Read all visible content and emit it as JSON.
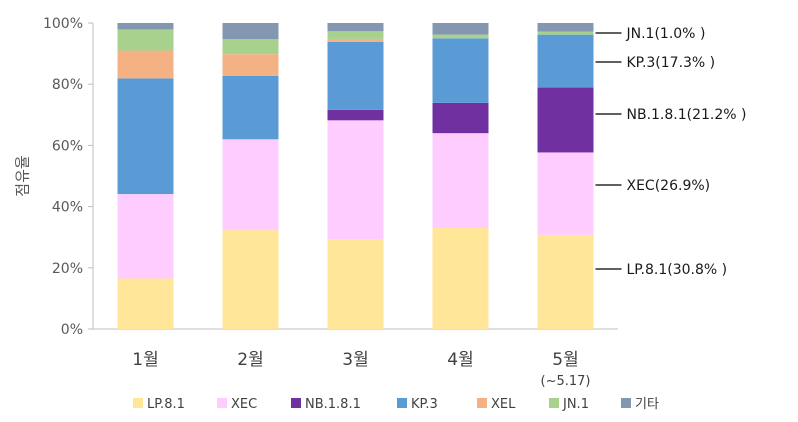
{
  "chart_data": {
    "type": "bar",
    "stacked": true,
    "percent": true,
    "ylabel": "점유율",
    "ylim": [
      0,
      100
    ],
    "yticks": [
      "0%",
      "20%",
      "40%",
      "60%",
      "80%",
      "100%"
    ],
    "categories": [
      "1월",
      "2월",
      "3월",
      "4월",
      "5월"
    ],
    "category_sublabels": [
      "",
      "",
      "",
      "",
      "(~5.17)"
    ],
    "legend_position": "bottom",
    "grid": false,
    "series": [
      {
        "name": "LP.8.1",
        "color": "#FFE699",
        "values": [
          16.5,
          32.3,
          29.3,
          33.0,
          30.8
        ]
      },
      {
        "name": "XEC",
        "color": "#FFCCFF",
        "values": [
          27.6,
          29.7,
          38.9,
          31.0,
          26.9
        ]
      },
      {
        "name": "NB.1.8.1",
        "color": "#7030A0",
        "values": [
          0,
          0,
          3.4,
          9.9,
          21.2
        ]
      },
      {
        "name": "KP.3",
        "color": "#5B9BD5",
        "values": [
          37.8,
          20.7,
          22.2,
          21.1,
          17.3
        ]
      },
      {
        "name": "XEL",
        "color": "#F4B183",
        "values": [
          9.1,
          7.1,
          1.0,
          0,
          0
        ]
      },
      {
        "name": "JN.1",
        "color": "#A9D18E",
        "values": [
          6.9,
          4.9,
          2.5,
          1.2,
          1.0
        ]
      },
      {
        "name": "기타",
        "color": "#8497B0",
        "values": [
          2.1,
          5.3,
          2.7,
          3.8,
          2.8
        ]
      }
    ],
    "annotations": [
      {
        "text": "JN.1(1.0% )",
        "series": "JN.1"
      },
      {
        "text": "KP.3(17.3% )",
        "series": "KP.3"
      },
      {
        "text": "NB.1.8.1(21.2% )",
        "series": "NB.1.8.1"
      },
      {
        "text": "XEC(26.9%)",
        "series": "XEC"
      },
      {
        "text": "LP.8.1(30.8% )",
        "series": "LP.8.1"
      }
    ]
  }
}
